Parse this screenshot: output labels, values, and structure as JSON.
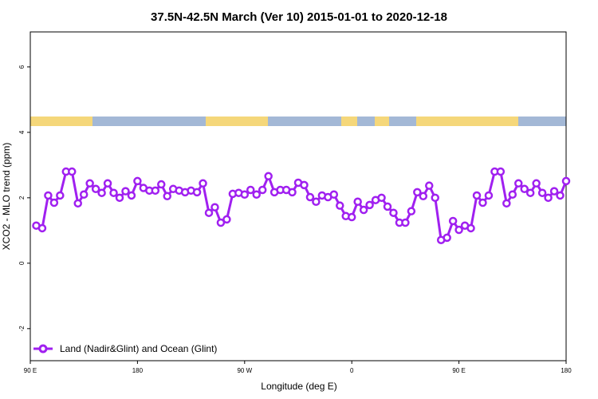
{
  "chart_data": {
    "type": "line",
    "title": "37.5N-42.5N March (Ver 10)   2015-01-01 to 2020-12-18",
    "x_label": "Longitude (deg E)",
    "y_label": "XCO2 - MLO trend (ppm)",
    "xlim": [
      90,
      540
    ],
    "ylim": [
      -2.98,
      7.07
    ],
    "xticks": [
      {
        "value": 90,
        "label": "90 E"
      },
      180,
      {
        "value": 270,
        "label": "90 W"
      },
      {
        "value": 360,
        "label": "0"
      },
      {
        "value": 450,
        "label": "90 E"
      },
      {
        "value": 540,
        "label": "180"
      }
    ],
    "yticks": [
      -2,
      0,
      2,
      4,
      6
    ],
    "legend": "bottom-left",
    "x": [
      95,
      100,
      105,
      110,
      115,
      120,
      125,
      130,
      135,
      140,
      145,
      150,
      155,
      160,
      165,
      170,
      175,
      180,
      185,
      190,
      195,
      200,
      205,
      210,
      215,
      220,
      225,
      230,
      235,
      240,
      245,
      250,
      255,
      260,
      265,
      270,
      275,
      280,
      285,
      290,
      295,
      300,
      305,
      310,
      315,
      320,
      325,
      330,
      335,
      340,
      345,
      350,
      355,
      360,
      365,
      370,
      375,
      380,
      385,
      390,
      395,
      400,
      405,
      410,
      415,
      420,
      425,
      430,
      435,
      440,
      445,
      450,
      455,
      460,
      465,
      470,
      475,
      480,
      485,
      490,
      495,
      500,
      505,
      510,
      515,
      520,
      525,
      530,
      535,
      540
    ],
    "series": [
      {
        "name": "Land (Nadir&Glint) and Ocean (Glint)",
        "color": "#a020f0",
        "values": [
          1.15,
          1.07,
          2.07,
          1.85,
          2.07,
          2.8,
          2.8,
          1.83,
          2.1,
          2.44,
          2.27,
          2.15,
          2.44,
          2.15,
          2.0,
          2.2,
          2.07,
          2.51,
          2.3,
          2.22,
          2.22,
          2.41,
          2.05,
          2.27,
          2.22,
          2.17,
          2.22,
          2.17,
          2.44,
          1.54,
          1.71,
          1.24,
          1.34,
          2.12,
          2.15,
          2.1,
          2.24,
          2.1,
          2.24,
          2.66,
          2.17,
          2.24,
          2.24,
          2.17,
          2.46,
          2.39,
          2.02,
          1.88,
          2.07,
          2.02,
          2.1,
          1.76,
          1.44,
          1.41,
          1.88,
          1.63,
          1.78,
          1.93,
          2.0,
          1.73,
          1.54,
          1.24,
          1.24,
          1.59,
          2.17,
          2.05,
          2.37,
          2.0,
          0.71,
          0.78,
          1.29,
          1.02,
          1.15,
          1.07,
          2.07,
          1.85,
          2.07,
          2.8,
          2.8,
          1.83,
          2.1,
          2.44,
          2.27,
          2.15,
          2.44,
          2.15,
          2.0,
          2.2,
          2.07,
          2.51
        ]
      }
    ]
  }
}
